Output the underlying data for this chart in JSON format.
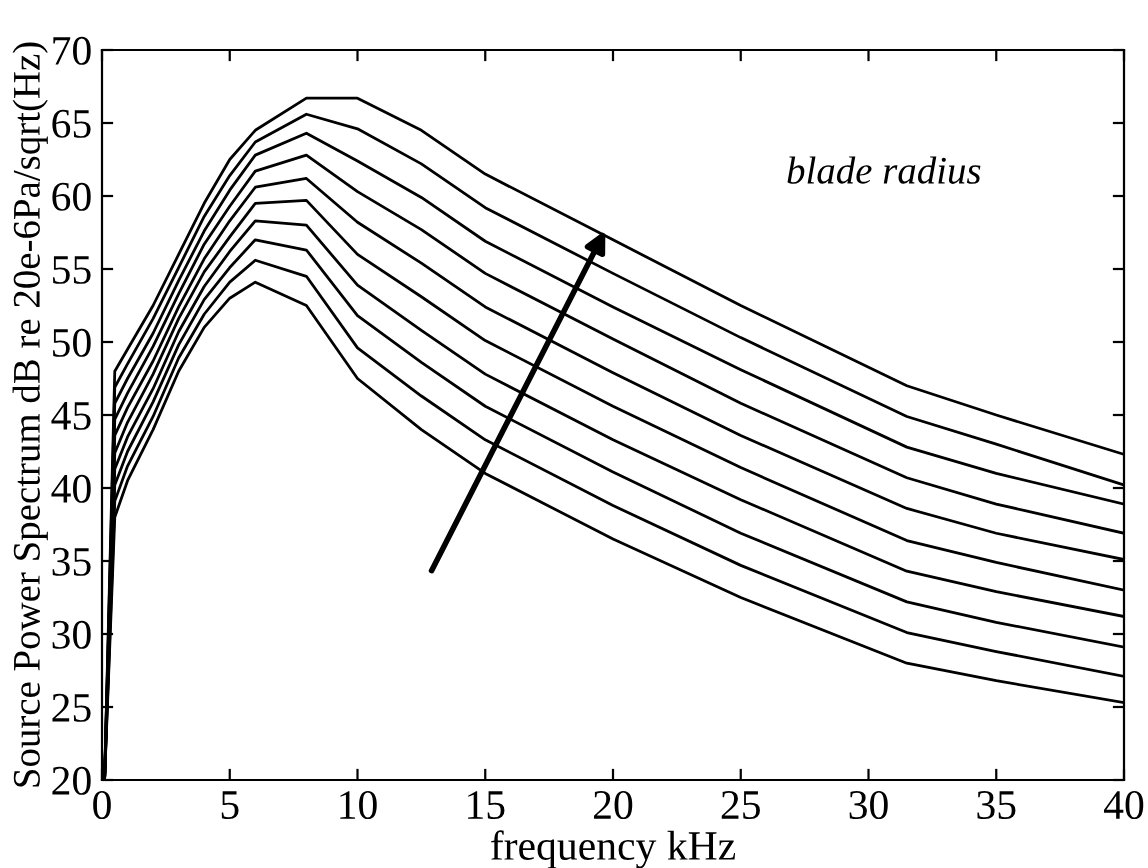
{
  "chart_data": {
    "type": "line",
    "xlabel": "frequency kHz",
    "ylabel": "Source Power Spectrum dB re 20e-6Pa/sqrt(Hz)",
    "x": [
      0.1,
      0.5,
      1,
      2,
      3,
      4,
      5,
      6,
      8,
      10,
      12.5,
      15,
      20,
      25,
      31.5,
      35,
      40
    ],
    "series": [
      {
        "color": "#000000",
        "values": [
          20,
          38,
          40.5,
          44,
          48,
          51,
          53,
          54.1,
          52.5,
          47.5,
          44,
          41,
          36.5,
          32.5,
          28,
          26.8,
          25.3
        ]
      },
      {
        "color": "#000000",
        "values": [
          20,
          39.1,
          41.5,
          44.9,
          48.9,
          51.9,
          54.1,
          55.6,
          54.5,
          49.6,
          46.3,
          43.3,
          38.8,
          34.7,
          30.1,
          28.8,
          27.1
        ]
      },
      {
        "color": "#000000",
        "values": [
          20,
          40.2,
          42.5,
          45.9,
          49.8,
          52.9,
          55.1,
          57.0,
          56.3,
          51.8,
          48.6,
          45.6,
          41.1,
          36.9,
          32.2,
          30.8,
          29.1
        ]
      },
      {
        "color": "#000000",
        "values": [
          20,
          41.3,
          43.5,
          46.8,
          50.7,
          53.8,
          56.2,
          58.3,
          58.0,
          53.9,
          50.8,
          47.8,
          43.3,
          39.2,
          34.3,
          32.9,
          31.2
        ]
      },
      {
        "color": "#000000",
        "values": [
          20,
          42.4,
          44.5,
          47.8,
          51.6,
          54.8,
          57.2,
          59.5,
          59.7,
          56.0,
          53.1,
          50.1,
          45.6,
          41.4,
          36.4,
          34.9,
          33.0
        ]
      },
      {
        "color": "#000000",
        "values": [
          20,
          43.6,
          45.5,
          48.7,
          52.4,
          55.7,
          58.3,
          60.6,
          61.2,
          58.2,
          55.4,
          52.4,
          47.9,
          43.6,
          38.6,
          36.9,
          35.1
        ]
      },
      {
        "color": "#000000",
        "values": [
          20,
          44.7,
          46.5,
          49.7,
          53.3,
          56.7,
          59.3,
          61.7,
          62.8,
          60.3,
          57.7,
          54.7,
          50.2,
          45.8,
          40.7,
          38.9,
          36.9
        ]
      },
      {
        "color": "#000000",
        "values": [
          20,
          45.8,
          47.5,
          50.6,
          54.2,
          57.6,
          60.4,
          62.8,
          64.3,
          62.4,
          59.9,
          56.9,
          52.4,
          48.1,
          42.8,
          41.0,
          38.9
        ]
      },
      {
        "color": "#000000",
        "values": [
          20,
          46.9,
          48.5,
          51.6,
          55.1,
          58.6,
          61.4,
          63.7,
          65.6,
          64.6,
          62.2,
          59.2,
          54.7,
          50.3,
          44.9,
          43.0,
          40.2
        ]
      },
      {
        "color": "#000000",
        "values": [
          20,
          48,
          49.5,
          52.5,
          56,
          59.5,
          62.5,
          64.5,
          66.7,
          66.7,
          64.5,
          61.5,
          57,
          52.5,
          47,
          45,
          42.3
        ]
      }
    ],
    "xlim": [
      0,
      40
    ],
    "xticks": [
      0,
      5,
      10,
      15,
      20,
      25,
      30,
      35,
      40
    ],
    "ylim": [
      20,
      70
    ],
    "yticks": [
      20,
      25,
      30,
      35,
      40,
      45,
      50,
      55,
      60,
      65,
      70
    ],
    "grid": false,
    "legend": false,
    "marker": "none",
    "line_style": "solid",
    "annotations": [
      "blade radius"
    ]
  }
}
